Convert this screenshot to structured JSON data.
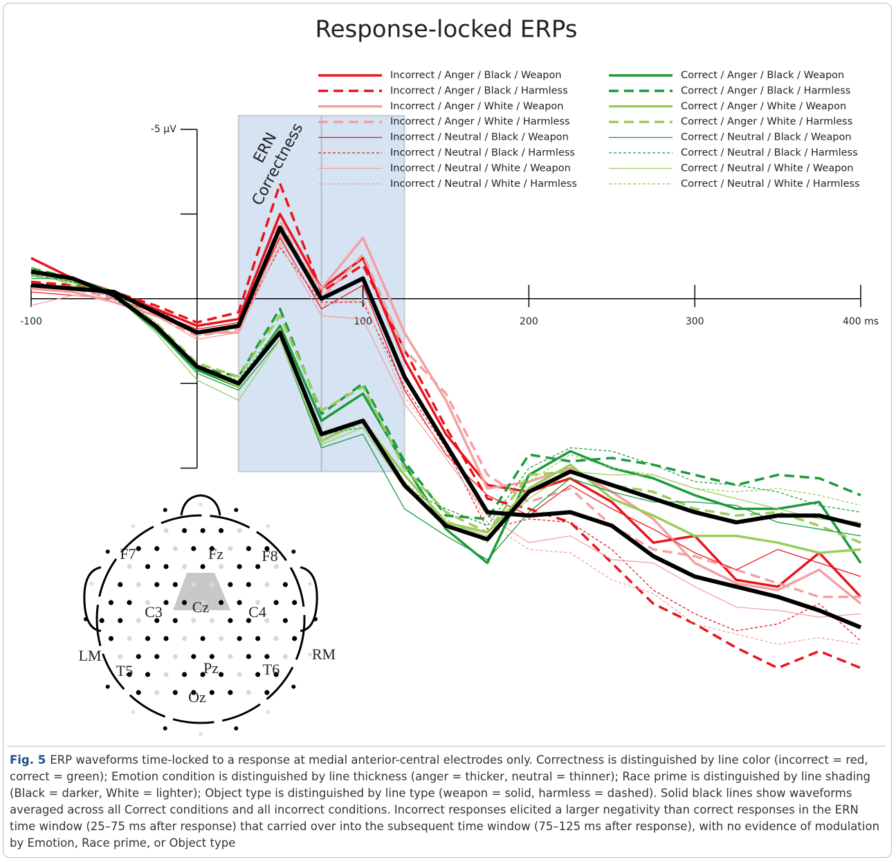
{
  "chart_data": {
    "type": "line",
    "title": "Response-locked ERPs",
    "annotations": [
      "ERN",
      "Correctness"
    ],
    "x": [
      -100,
      -75,
      -50,
      -25,
      0,
      25,
      50,
      75,
      100,
      125,
      150,
      175,
      200,
      225,
      250,
      275,
      300,
      325,
      350,
      375,
      400
    ],
    "xlim": [
      -100,
      400
    ],
    "xticks": [
      -100,
      100,
      200,
      300,
      {
        "value": 400,
        "label": "400 ms"
      }
    ],
    "ylim": [
      -7,
      11.5
    ],
    "y_inverted": true,
    "yticks": [
      {
        "value": -5,
        "label": "-5 µV"
      }
    ],
    "yticks_unlabeled": [
      -2.5,
      2.5,
      5
    ],
    "shaded_windows": [
      [
        25,
        75
      ],
      [
        75,
        125
      ]
    ],
    "window_ylim": [
      -5.4,
      5.1
    ],
    "window_color": "#c8daee",
    "series": [
      {
        "name": "Incorrect / Anger / Black / Weapon",
        "color": "#e8141c",
        "width": 3.5,
        "dashed": false,
        "values": [
          -1.2,
          -0.6,
          -0.2,
          0.3,
          0.8,
          0.6,
          -2.5,
          -0.3,
          -1.2,
          1.8,
          4.0,
          5.5,
          5.7,
          5.3,
          6.0,
          7.2,
          7.0,
          8.3,
          8.5,
          7.5,
          8.8
        ]
      },
      {
        "name": "Incorrect / Anger / Black / Harmless",
        "color": "#e8141c",
        "width": 3.5,
        "dashed": true,
        "values": [
          -0.5,
          -0.4,
          -0.2,
          0.2,
          0.7,
          0.4,
          -3.4,
          -0.2,
          -1.0,
          1.5,
          3.8,
          5.9,
          6.2,
          6.6,
          7.8,
          9.0,
          9.6,
          10.3,
          10.9,
          10.4,
          10.9
        ]
      },
      {
        "name": "Incorrect / Anger / White / Weapon",
        "color": "#f4a0a0",
        "width": 3.5,
        "dashed": false,
        "values": [
          -0.3,
          -0.2,
          0.1,
          0.5,
          1.0,
          1.0,
          -1.9,
          -0.3,
          -1.8,
          1.0,
          3.0,
          5.6,
          5.4,
          5.0,
          5.7,
          6.5,
          7.8,
          8.4,
          8.6,
          8.0,
          9.0
        ]
      },
      {
        "name": "Incorrect / Anger / White / Harmless",
        "color": "#f4a0a0",
        "width": 3.5,
        "dashed": true,
        "values": [
          -0.4,
          -0.3,
          0.0,
          0.5,
          1.1,
          0.9,
          -2.3,
          0.0,
          -1.3,
          1.5,
          2.8,
          5.2,
          6.0,
          5.6,
          6.7,
          7.4,
          7.6,
          8.0,
          8.4,
          8.8,
          8.8
        ]
      },
      {
        "name": "Incorrect / Neutral / Black / Weapon",
        "color": "#e8141c",
        "width": 1.3,
        "dashed": false,
        "values": [
          -0.2,
          -0.1,
          0.0,
          0.4,
          0.9,
          0.7,
          -1.8,
          0.3,
          -0.4,
          2.7,
          4.6,
          5.8,
          6.4,
          5.5,
          6.2,
          6.8,
          7.5,
          8.0,
          7.4,
          7.8,
          8.2
        ]
      },
      {
        "name": "Incorrect / Neutral / Black / Harmless",
        "color": "#e8141c",
        "width": 1.3,
        "dashed": true,
        "values": [
          -0.5,
          -0.3,
          -0.1,
          0.3,
          1.0,
          0.8,
          -1.5,
          0.1,
          0.1,
          2.6,
          4.4,
          6.8,
          6.5,
          6.6,
          7.4,
          8.6,
          9.3,
          9.8,
          9.6,
          9.0,
          10.1
        ]
      },
      {
        "name": "Incorrect / Neutral / White / Weapon",
        "color": "#f4a0a0",
        "width": 1.3,
        "dashed": false,
        "values": [
          0.2,
          -0.1,
          0.0,
          0.5,
          1.2,
          1.0,
          -1.6,
          0.5,
          0.6,
          3.1,
          4.7,
          6.4,
          7.2,
          7.0,
          7.7,
          7.8,
          8.5,
          9.1,
          9.2,
          9.4,
          9.3
        ]
      },
      {
        "name": "Incorrect / Neutral / White / Harmless",
        "color": "#f4a0a0",
        "width": 1.3,
        "dashed": true,
        "values": [
          -0.3,
          -0.4,
          -0.1,
          0.4,
          1.1,
          0.8,
          -1.7,
          0.2,
          0.0,
          2.9,
          4.5,
          6.6,
          7.4,
          7.5,
          8.3,
          8.7,
          9.6,
          9.9,
          10.2,
          10.0,
          10.2
        ]
      },
      {
        "name": "Correct / Anger / Black / Weapon",
        "color": "#1a9a3c",
        "width": 3.5,
        "dashed": false,
        "values": [
          -0.8,
          -0.5,
          -0.1,
          0.9,
          2.1,
          2.6,
          0.8,
          3.6,
          2.8,
          4.9,
          6.8,
          7.8,
          5.2,
          4.5,
          5.0,
          5.3,
          5.8,
          6.2,
          6.2,
          6.0,
          7.8
        ]
      },
      {
        "name": "Correct / Anger / Black / Harmless",
        "color": "#1a9a3c",
        "width": 3.5,
        "dashed": true,
        "values": [
          -0.9,
          -0.6,
          -0.2,
          0.8,
          2.0,
          2.3,
          0.3,
          3.4,
          2.5,
          4.8,
          6.4,
          6.5,
          4.6,
          4.8,
          4.7,
          4.9,
          5.2,
          5.5,
          5.2,
          5.3,
          5.8
        ]
      },
      {
        "name": "Correct / Anger / White / Weapon",
        "color": "#9acd5a",
        "width": 3.5,
        "dashed": false,
        "values": [
          -0.8,
          -0.5,
          -0.1,
          0.8,
          2.0,
          2.6,
          0.9,
          4.2,
          3.6,
          5.2,
          6.6,
          6.9,
          5.6,
          4.9,
          5.9,
          6.4,
          7.0,
          7.0,
          7.2,
          7.5,
          7.4
        ]
      },
      {
        "name": "Correct / Anger / White / Harmless",
        "color": "#9acd5a",
        "width": 3.5,
        "dashed": true,
        "values": [
          -0.7,
          -0.5,
          -0.1,
          0.7,
          1.9,
          2.3,
          0.5,
          3.3,
          2.6,
          5.0,
          6.3,
          6.9,
          5.2,
          5.1,
          5.5,
          5.7,
          6.2,
          6.4,
          6.3,
          6.7,
          7.2
        ]
      },
      {
        "name": "Correct / Neutral / Black / Weapon",
        "color": "#1a9a3c",
        "width": 1.3,
        "dashed": false,
        "values": [
          -0.6,
          -0.6,
          -0.1,
          0.9,
          2.2,
          2.7,
          1.2,
          4.4,
          4.0,
          6.2,
          7.0,
          7.7,
          6.3,
          5.3,
          5.7,
          6.0,
          6.0,
          6.1,
          6.6,
          6.8,
          7.0
        ]
      },
      {
        "name": "Correct / Neutral / Black / Harmless",
        "color": "#1a9a3c",
        "width": 1.3,
        "dashed": true,
        "values": [
          -0.7,
          -0.5,
          0.0,
          0.8,
          2.0,
          2.4,
          0.8,
          4.0,
          3.8,
          5.6,
          6.2,
          6.7,
          5.0,
          4.4,
          4.5,
          4.9,
          5.4,
          5.5,
          5.7,
          6.1,
          6.3
        ]
      },
      {
        "name": "Correct / Neutral / White / Weapon",
        "color": "#9acd5a",
        "width": 1.3,
        "dashed": false,
        "values": [
          -0.8,
          -0.4,
          -0.1,
          1.0,
          2.4,
          3.0,
          1.2,
          4.3,
          3.8,
          5.6,
          6.6,
          7.0,
          5.9,
          5.1,
          5.2,
          5.2,
          5.6,
          5.9,
          6.2,
          6.5,
          6.6
        ]
      },
      {
        "name": "Correct / Neutral / White / Harmless",
        "color": "#9acd5a",
        "width": 1.3,
        "dashed": true,
        "values": [
          -0.9,
          -0.6,
          -0.2,
          0.7,
          2.0,
          2.4,
          1.0,
          4.1,
          3.7,
          5.4,
          6.5,
          7.2,
          5.4,
          4.6,
          5.0,
          5.2,
          5.6,
          5.7,
          5.6,
          5.8,
          6.1
        ]
      }
    ],
    "averages": [
      {
        "color": "#000000",
        "width": 6,
        "values": [
          -0.4,
          -0.3,
          -0.2,
          0.4,
          1.0,
          0.8,
          -2.1,
          0.0,
          -0.6,
          2.3,
          4.3,
          6.3,
          6.4,
          6.3,
          6.7,
          7.6,
          8.2,
          8.5,
          8.8,
          9.2,
          9.7
        ]
      },
      {
        "color": "#000000",
        "width": 6,
        "values": [
          -0.8,
          -0.6,
          -0.1,
          0.8,
          2.0,
          2.5,
          1.0,
          4.0,
          3.6,
          5.5,
          6.7,
          7.1,
          5.7,
          5.1,
          5.5,
          5.9,
          6.3,
          6.6,
          6.4,
          6.4,
          6.7
        ]
      }
    ]
  },
  "head_map": {
    "labels": [
      "F7",
      "Fz",
      "F8",
      "C3",
      "Cz",
      "C4",
      "LM",
      "T5",
      "Pz",
      "T6",
      "RM",
      "Oz"
    ]
  },
  "caption": {
    "label": "Fig. 5",
    "text": "ERP waveforms time-locked to a response at medial anterior-central electrodes only. Correctness is distinguished by line color (incorrect = red, correct = green); Emotion condition is distinguished by line thickness (anger = thicker, neutral = thinner); Race prime is distinguished by line shading (Black = darker, White = lighter); Object type is distinguished by line type (weapon = solid, harmless = dashed). Solid black lines show waveforms averaged across all Correct conditions and all incorrect conditions. Incorrect responses elicited a larger negativity than correct responses in the ERN time window (25–75 ms after response) that carried over into the subsequent time window (75–125 ms after response), with no evidence of modulation by Emotion, Race prime, or Object type"
  }
}
